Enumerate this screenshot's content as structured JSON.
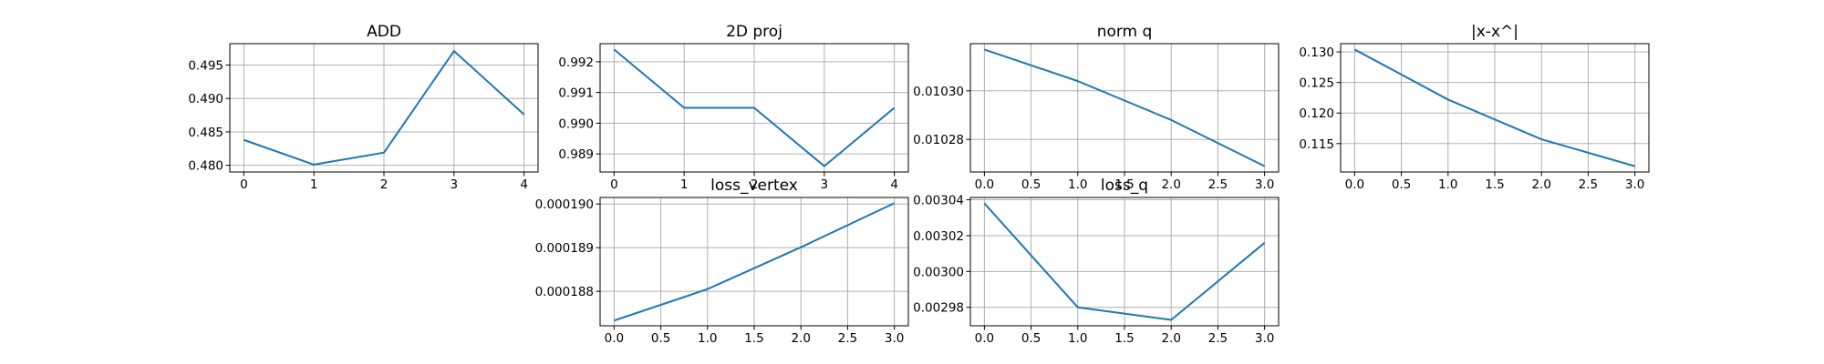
{
  "line_color": "#1f77b4",
  "grid_color": "#b0b0b0",
  "chart_data": [
    {
      "type": "line",
      "title": "ADD",
      "x": [
        0,
        1,
        2,
        3,
        4
      ],
      "series": [
        {
          "values": [
            0.4838,
            0.4801,
            0.4819,
            0.4971,
            0.4876
          ]
        }
      ],
      "xlim": [
        -0.2,
        4.2
      ],
      "ylim": [
        0.479,
        0.4982
      ],
      "xticks": [
        0,
        1,
        2,
        3,
        4
      ],
      "xtick_labels": [
        "0",
        "1",
        "2",
        "3",
        "4"
      ],
      "yticks": [
        0.48,
        0.485,
        0.49,
        0.495
      ],
      "ytick_labels": [
        "0.480",
        "0.485",
        "0.490",
        "0.495"
      ],
      "grid": true
    },
    {
      "type": "line",
      "title": "2D proj",
      "x": [
        0,
        1,
        2,
        3,
        4
      ],
      "series": [
        {
          "values": [
            0.9924,
            0.9905,
            0.9905,
            0.9886,
            0.9905
          ]
        }
      ],
      "xlim": [
        -0.2,
        4.2
      ],
      "ylim": [
        0.98841,
        0.99259
      ],
      "xticks": [
        0,
        1,
        2,
        3,
        4
      ],
      "xtick_labels": [
        "0",
        "1",
        "2",
        "3",
        "4"
      ],
      "yticks": [
        0.989,
        0.99,
        0.991,
        0.992
      ],
      "ytick_labels": [
        "0.989",
        "0.990",
        "0.991",
        "0.992"
      ],
      "grid": true
    },
    {
      "type": "line",
      "title": "norm q",
      "x": [
        0,
        1,
        2,
        3
      ],
      "series": [
        {
          "values": [
            0.010317,
            0.010304,
            0.010288,
            0.010269
          ]
        }
      ],
      "xlim": [
        -0.15,
        3.15
      ],
      "ylim": [
        0.0102666,
        0.0103194
      ],
      "xticks": [
        0.0,
        0.5,
        1.0,
        1.5,
        2.0,
        2.5,
        3.0
      ],
      "xtick_labels": [
        "0.0",
        "0.5",
        "1.0",
        "1.5",
        "2.0",
        "2.5",
        "3.0"
      ],
      "yticks": [
        0.01028,
        0.0103
      ],
      "ytick_labels": [
        "0.01028",
        "0.01030"
      ],
      "grid": true
    },
    {
      "type": "line",
      "title": "|x-x^|",
      "x": [
        0,
        1,
        2,
        3
      ],
      "series": [
        {
          "values": [
            0.1304,
            0.1222,
            0.1157,
            0.1113
          ]
        }
      ],
      "xlim": [
        -0.15,
        3.15
      ],
      "ylim": [
        0.11035,
        0.13135
      ],
      "xticks": [
        0.0,
        0.5,
        1.0,
        1.5,
        2.0,
        2.5,
        3.0
      ],
      "xtick_labels": [
        "0.0",
        "0.5",
        "1.0",
        "1.5",
        "2.0",
        "2.5",
        "3.0"
      ],
      "yticks": [
        0.115,
        0.12,
        0.125,
        0.13
      ],
      "ytick_labels": [
        "0.115",
        "0.120",
        "0.125",
        "0.130"
      ],
      "grid": true
    },
    {
      "type": "line",
      "title": "loss_vertex",
      "x": [
        0,
        1,
        2,
        3
      ],
      "series": [
        {
          "values": [
            0.00018733,
            0.00018805,
            0.00018901,
            0.00019002
          ]
        }
      ],
      "xlim": [
        -0.15,
        3.15
      ],
      "ylim": [
        0.00018721,
        0.00019015
      ],
      "xticks": [
        0.0,
        0.5,
        1.0,
        1.5,
        2.0,
        2.5,
        3.0
      ],
      "xtick_labels": [
        "0.0",
        "0.5",
        "1.0",
        "1.5",
        "2.0",
        "2.5",
        "3.0"
      ],
      "yticks": [
        0.000188,
        0.000189,
        0.00019
      ],
      "ytick_labels": [
        "0.000188",
        "0.000189",
        "0.000190"
      ],
      "grid": true
    },
    {
      "type": "line",
      "title": "loss_q",
      "x": [
        0,
        1,
        2,
        3
      ],
      "series": [
        {
          "values": [
            0.003038,
            0.00298,
            0.002973,
            0.003016
          ]
        }
      ],
      "xlim": [
        -0.15,
        3.15
      ],
      "ylim": [
        0.0029697,
        0.0030413
      ],
      "xticks": [
        0.0,
        0.5,
        1.0,
        1.5,
        2.0,
        2.5,
        3.0
      ],
      "xtick_labels": [
        "0.0",
        "0.5",
        "1.0",
        "1.5",
        "2.0",
        "2.5",
        "3.0"
      ],
      "yticks": [
        0.00298,
        0.003,
        0.00302,
        0.00304
      ],
      "ytick_labels": [
        "0.00298",
        "0.00300",
        "0.00302",
        "0.00304"
      ],
      "grid": true
    }
  ]
}
